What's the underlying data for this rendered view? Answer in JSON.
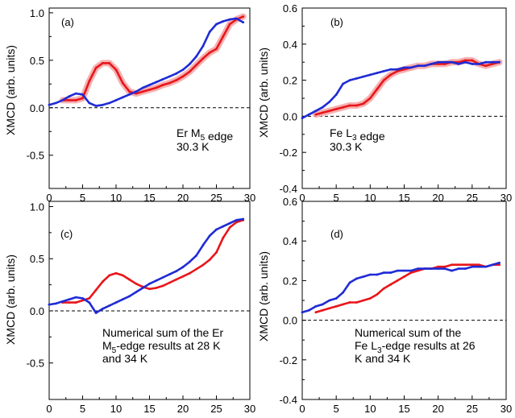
{
  "figure": {
    "xlabel": "μ0H (T)",
    "ylabel": "XMCD (arb. units)"
  },
  "colors": {
    "red": "#e8161b",
    "blue": "#1f2bd6",
    "band": "#f4a9a9"
  },
  "chart_data": [
    {
      "id": "a",
      "type": "line",
      "panel_label": "(a)",
      "annotation": [
        "Er M5 edge",
        "30.3 K"
      ],
      "xlim": [
        0,
        30
      ],
      "ylim": [
        -0.85,
        1.05
      ],
      "xticks": [
        0,
        5,
        10,
        15,
        20,
        25,
        30
      ],
      "yticks": [
        1.0,
        0.5,
        0.0,
        -0.5
      ],
      "ytick_labels": [
        "1.0",
        "0.5",
        "0.0",
        "-0.5"
      ],
      "reference_line": 0,
      "series": [
        {
          "color": "red",
          "band": true,
          "x": [
            2,
            3,
            4,
            5,
            6,
            7,
            8,
            9,
            10,
            11,
            12,
            13,
            14,
            15,
            16,
            17,
            18,
            19,
            20,
            21,
            22,
            23,
            24,
            25,
            26,
            27,
            28,
            29
          ],
          "y": [
            0.08,
            0.08,
            0.08,
            0.1,
            0.28,
            0.42,
            0.47,
            0.47,
            0.4,
            0.26,
            0.17,
            0.15,
            0.17,
            0.19,
            0.21,
            0.24,
            0.26,
            0.29,
            0.33,
            0.38,
            0.45,
            0.52,
            0.58,
            0.62,
            0.75,
            0.88,
            0.93,
            0.96
          ]
        },
        {
          "color": "blue",
          "band": false,
          "x": [
            0,
            1,
            2,
            3,
            4,
            5,
            6,
            7,
            8,
            9,
            10,
            11,
            12,
            13,
            14,
            15,
            16,
            17,
            18,
            19,
            20,
            21,
            22,
            23,
            24,
            25,
            26,
            27,
            28,
            29
          ],
          "y": [
            0.03,
            0.05,
            0.08,
            0.12,
            0.15,
            0.14,
            0.05,
            0.02,
            0.03,
            0.05,
            0.08,
            0.11,
            0.14,
            0.17,
            0.21,
            0.24,
            0.27,
            0.3,
            0.33,
            0.36,
            0.4,
            0.46,
            0.54,
            0.65,
            0.8,
            0.88,
            0.91,
            0.93,
            0.94,
            0.9
          ]
        }
      ]
    },
    {
      "id": "b",
      "type": "line",
      "panel_label": "(b)",
      "annotation": [
        "Fe L3 edge",
        "30.3 K"
      ],
      "xlim": [
        0,
        30
      ],
      "ylim": [
        -0.4,
        0.6
      ],
      "xticks": [
        0,
        5,
        10,
        15,
        20,
        25,
        30
      ],
      "yticks": [
        0.6,
        0.4,
        0.2,
        0.0,
        -0.2,
        -0.4
      ],
      "ytick_labels": [
        "0.6",
        "0.4",
        "0.2",
        "0.0",
        "-0.2",
        "-0.4"
      ],
      "reference_line": 0,
      "series": [
        {
          "color": "red",
          "band": true,
          "x": [
            2,
            3,
            4,
            5,
            6,
            7,
            8,
            9,
            10,
            11,
            12,
            13,
            14,
            15,
            16,
            17,
            18,
            19,
            20,
            21,
            22,
            23,
            24,
            25,
            26,
            27,
            28,
            29
          ],
          "y": [
            0.01,
            0.02,
            0.03,
            0.04,
            0.05,
            0.06,
            0.06,
            0.07,
            0.1,
            0.15,
            0.2,
            0.23,
            0.25,
            0.26,
            0.27,
            0.28,
            0.28,
            0.29,
            0.29,
            0.29,
            0.3,
            0.3,
            0.31,
            0.31,
            0.29,
            0.28,
            0.29,
            0.3
          ]
        },
        {
          "color": "blue",
          "band": false,
          "x": [
            0,
            1,
            2,
            3,
            4,
            5,
            6,
            7,
            8,
            9,
            10,
            11,
            12,
            13,
            14,
            15,
            16,
            17,
            18,
            19,
            20,
            21,
            22,
            23,
            24,
            25,
            26,
            27,
            28,
            29
          ],
          "y": [
            -0.01,
            0.01,
            0.03,
            0.05,
            0.08,
            0.12,
            0.18,
            0.2,
            0.21,
            0.22,
            0.23,
            0.24,
            0.25,
            0.26,
            0.26,
            0.27,
            0.27,
            0.28,
            0.28,
            0.29,
            0.3,
            0.3,
            0.3,
            0.29,
            0.3,
            0.29,
            0.29,
            0.3,
            0.3,
            0.3
          ]
        }
      ]
    },
    {
      "id": "c",
      "type": "line",
      "panel_label": "(c)",
      "annotation": [
        "Numerical sum of the Er",
        "M5-edge results at 28 K",
        "and 34 K"
      ],
      "xlim": [
        0,
        30
      ],
      "ylim": [
        -0.85,
        1.05
      ],
      "xticks": [
        0,
        5,
        10,
        15,
        20,
        25,
        30
      ],
      "yticks": [
        1.0,
        0.5,
        0.0,
        -0.5
      ],
      "ytick_labels": [
        "1.0",
        "0.5",
        "0.0",
        "-0.5"
      ],
      "reference_line": 0,
      "series": [
        {
          "color": "red",
          "band": false,
          "x": [
            2,
            3,
            4,
            5,
            6,
            7,
            8,
            9,
            10,
            11,
            12,
            13,
            14,
            15,
            16,
            17,
            18,
            19,
            20,
            21,
            22,
            23,
            24,
            25,
            26,
            27,
            28,
            29
          ],
          "y": [
            0.08,
            0.08,
            0.08,
            0.1,
            0.12,
            0.2,
            0.28,
            0.34,
            0.36,
            0.34,
            0.3,
            0.26,
            0.23,
            0.21,
            0.22,
            0.24,
            0.27,
            0.3,
            0.33,
            0.36,
            0.4,
            0.44,
            0.49,
            0.56,
            0.7,
            0.8,
            0.85,
            0.87
          ]
        },
        {
          "color": "blue",
          "band": false,
          "x": [
            0,
            1,
            2,
            3,
            4,
            5,
            6,
            7,
            8,
            9,
            10,
            11,
            12,
            13,
            14,
            15,
            16,
            17,
            18,
            19,
            20,
            21,
            22,
            23,
            24,
            25,
            26,
            27,
            28,
            29
          ],
          "y": [
            0.06,
            0.07,
            0.09,
            0.11,
            0.13,
            0.12,
            0.08,
            -0.02,
            0.02,
            0.05,
            0.08,
            0.11,
            0.14,
            0.18,
            0.22,
            0.26,
            0.29,
            0.32,
            0.35,
            0.38,
            0.42,
            0.47,
            0.53,
            0.63,
            0.72,
            0.78,
            0.81,
            0.84,
            0.87,
            0.88
          ]
        }
      ]
    },
    {
      "id": "d",
      "type": "line",
      "panel_label": "(d)",
      "annotation": [
        "Numerical sum of the",
        "Fe L3-edge results at 26",
        "K and 34 K"
      ],
      "xlim": [
        0,
        30
      ],
      "ylim": [
        -0.4,
        0.6
      ],
      "xticks": [
        0,
        5,
        10,
        15,
        20,
        25,
        30
      ],
      "yticks": [
        0.6,
        0.4,
        0.2,
        0.0,
        -0.2,
        -0.4
      ],
      "ytick_labels": [
        "0.6",
        "0.4",
        "0.2",
        "0.0",
        "-0.2",
        "-0.4"
      ],
      "reference_line": 0,
      "series": [
        {
          "color": "red",
          "band": false,
          "x": [
            2,
            3,
            4,
            5,
            6,
            7,
            8,
            9,
            10,
            11,
            12,
            13,
            14,
            15,
            16,
            17,
            18,
            19,
            20,
            21,
            22,
            23,
            24,
            25,
            26,
            27,
            28,
            29
          ],
          "y": [
            0.04,
            0.05,
            0.06,
            0.07,
            0.08,
            0.09,
            0.09,
            0.1,
            0.11,
            0.13,
            0.16,
            0.18,
            0.2,
            0.22,
            0.24,
            0.25,
            0.26,
            0.26,
            0.27,
            0.27,
            0.28,
            0.28,
            0.28,
            0.28,
            0.28,
            0.27,
            0.28,
            0.28
          ]
        },
        {
          "color": "blue",
          "band": false,
          "x": [
            0,
            1,
            2,
            3,
            4,
            5,
            6,
            7,
            8,
            9,
            10,
            11,
            12,
            13,
            14,
            15,
            16,
            17,
            18,
            19,
            20,
            21,
            22,
            23,
            24,
            25,
            26,
            27,
            28,
            29
          ],
          "y": [
            0.04,
            0.05,
            0.07,
            0.08,
            0.1,
            0.11,
            0.14,
            0.19,
            0.21,
            0.22,
            0.23,
            0.23,
            0.24,
            0.24,
            0.25,
            0.25,
            0.25,
            0.26,
            0.26,
            0.26,
            0.26,
            0.26,
            0.25,
            0.26,
            0.26,
            0.27,
            0.27,
            0.27,
            0.28,
            0.29
          ]
        }
      ]
    }
  ]
}
